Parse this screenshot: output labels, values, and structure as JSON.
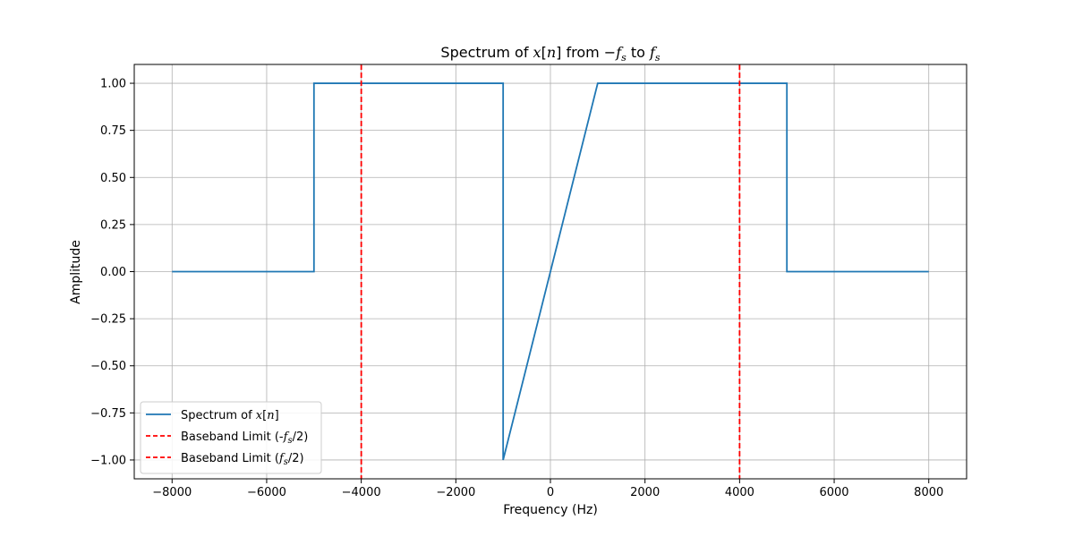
{
  "chart_data": {
    "type": "line",
    "title": {
      "prefix": "Spectrum of ",
      "var": "x",
      "index_open": "[",
      "index": "n",
      "index_close": "]",
      "middle": " from −",
      "fs1": "f",
      "fs1_sub": "s",
      "to": " to ",
      "fs2": "f",
      "fs2_sub": "s"
    },
    "xlabel": "Frequency (Hz)",
    "ylabel": "Amplitude",
    "xlim": [
      -8800,
      8800
    ],
    "ylim": [
      -1.1,
      1.1
    ],
    "xticks": [
      -8000,
      -6000,
      -4000,
      -2000,
      0,
      2000,
      4000,
      6000,
      8000
    ],
    "xtick_labels": [
      "−8000",
      "−6000",
      "−4000",
      "−2000",
      "0",
      "2000",
      "4000",
      "6000",
      "8000"
    ],
    "yticks": [
      -1.0,
      -0.75,
      -0.5,
      -0.25,
      0.0,
      0.25,
      0.5,
      0.75,
      1.0
    ],
    "ytick_labels": [
      "−1.00",
      "−0.75",
      "−0.50",
      "−0.25",
      "0.00",
      "0.25",
      "0.50",
      "0.75",
      "1.00"
    ],
    "grid": true,
    "legend_position": "lower-left",
    "series": [
      {
        "name": "Spectrum of x[n]",
        "color": "#1f77b4",
        "style": "solid",
        "x": [
          -8000,
          -5000,
          -5000,
          -1000,
          -1000,
          1000,
          5000,
          5000,
          8000
        ],
        "y": [
          0,
          0,
          1,
          1,
          -1,
          1,
          1,
          0,
          0
        ]
      },
      {
        "name": "Baseband Limit (-fs/2)",
        "color": "#ff0000",
        "style": "dashed",
        "vline_x": -4000
      },
      {
        "name": "Baseband Limit (fs/2)",
        "color": "#ff0000",
        "style": "dashed",
        "vline_x": 4000
      }
    ],
    "legend": [
      {
        "prefix": "Spectrum of ",
        "var": "x",
        "open": "[",
        "sub": "n",
        "close": "]",
        "mode": "index"
      },
      {
        "prefix": "Baseband Limit (-",
        "var": "f",
        "sub": "s",
        "suffix": "/2)",
        "mode": "subscript"
      },
      {
        "prefix": "Baseband Limit (",
        "var": "f",
        "sub": "s",
        "suffix": "/2)",
        "mode": "subscript"
      }
    ]
  }
}
